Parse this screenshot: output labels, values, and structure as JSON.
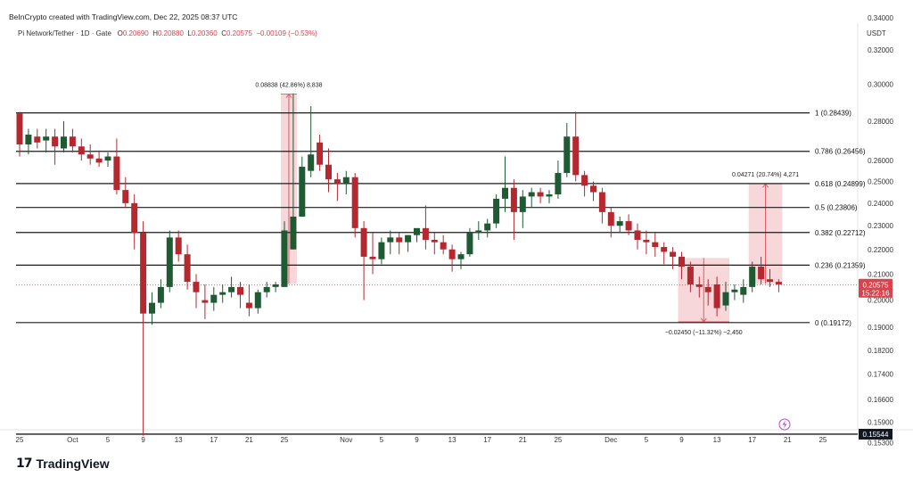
{
  "header": {
    "attribution": "BeInCrypto created with TradingView.com, Dec 22, 2025 08:37 UTC"
  },
  "ohlc": {
    "symbol": "Pi Network/Tether · 1D · Gate",
    "o_label": "O",
    "o": "0.20690",
    "h_label": "H",
    "h": "0.20880",
    "l_label": "L",
    "l": "0.20360",
    "c_label": "C",
    "c": "0.20575",
    "change": "−0.00109 (−0.53%)"
  },
  "currency": "USDT",
  "brand": {
    "name": "TradingView",
    "mark": "17"
  },
  "colors": {
    "up": "#1e5b33",
    "down": "#b52830",
    "wick": "#5a5a5a",
    "fib_line": "#1b1b1b",
    "measure_fill": "#f4c9cc",
    "measure_line": "#e05a64",
    "price_badge": "#d9434d",
    "low_badge": "#131722",
    "icon": "#b04ac7"
  },
  "chart_data": {
    "type": "candlestick",
    "title": "Pi Network/Tether · 1D · Gate",
    "ylim": [
      0.15,
      0.358
    ],
    "scale": "log",
    "y_ticks": [
      "0.34000",
      "0.32000",
      "0.30000",
      "0.28000",
      "0.26000",
      "0.25000",
      "0.24000",
      "0.23000",
      "0.22000",
      "0.21000",
      "0.20000",
      "0.19000",
      "0.18200",
      "0.17400",
      "0.16600",
      "0.15900",
      "0.15300"
    ],
    "x_ticks": [
      {
        "label": "25",
        "bar": 0
      },
      {
        "label": "Oct",
        "bar": 6
      },
      {
        "label": "5",
        "bar": 10
      },
      {
        "label": "9",
        "bar": 14
      },
      {
        "label": "13",
        "bar": 18
      },
      {
        "label": "17",
        "bar": 22
      },
      {
        "label": "21",
        "bar": 26
      },
      {
        "label": "25",
        "bar": 30
      },
      {
        "label": "Nov",
        "bar": 37
      },
      {
        "label": "5",
        "bar": 41
      },
      {
        "label": "9",
        "bar": 45
      },
      {
        "label": "13",
        "bar": 49
      },
      {
        "label": "17",
        "bar": 53
      },
      {
        "label": "21",
        "bar": 57
      },
      {
        "label": "25",
        "bar": 61
      },
      {
        "label": "Dec",
        "bar": 67
      },
      {
        "label": "5",
        "bar": 71
      },
      {
        "label": "9",
        "bar": 75
      },
      {
        "label": "13",
        "bar": 79
      },
      {
        "label": "17",
        "bar": 83
      },
      {
        "label": "21",
        "bar": 87
      },
      {
        "label": "25",
        "bar": 91
      }
    ],
    "candles": [
      [
        0.284,
        0.285,
        0.262,
        0.268
      ],
      [
        0.268,
        0.276,
        0.263,
        0.273
      ],
      [
        0.272,
        0.276,
        0.266,
        0.269
      ],
      [
        0.27,
        0.276,
        0.264,
        0.272
      ],
      [
        0.272,
        0.276,
        0.258,
        0.267
      ],
      [
        0.266,
        0.28,
        0.264,
        0.272
      ],
      [
        0.272,
        0.276,
        0.264,
        0.267
      ],
      [
        0.267,
        0.271,
        0.26,
        0.263
      ],
      [
        0.263,
        0.268,
        0.258,
        0.261
      ],
      [
        0.261,
        0.265,
        0.257,
        0.259
      ],
      [
        0.26,
        0.264,
        0.257,
        0.262
      ],
      [
        0.262,
        0.271,
        0.244,
        0.246
      ],
      [
        0.246,
        0.252,
        0.238,
        0.24
      ],
      [
        0.24,
        0.244,
        0.22,
        0.227
      ],
      [
        0.227,
        0.232,
        0.155,
        0.195
      ],
      [
        0.195,
        0.203,
        0.191,
        0.199
      ],
      [
        0.199,
        0.208,
        0.197,
        0.205
      ],
      [
        0.205,
        0.228,
        0.203,
        0.225
      ],
      [
        0.225,
        0.228,
        0.215,
        0.218
      ],
      [
        0.218,
        0.222,
        0.204,
        0.207
      ],
      [
        0.207,
        0.21,
        0.197,
        0.203
      ],
      [
        0.2,
        0.206,
        0.193,
        0.199
      ],
      [
        0.199,
        0.205,
        0.196,
        0.202
      ],
      [
        0.202,
        0.206,
        0.199,
        0.203
      ],
      [
        0.203,
        0.209,
        0.201,
        0.205
      ],
      [
        0.205,
        0.207,
        0.197,
        0.202
      ],
      [
        0.199,
        0.206,
        0.194,
        0.197
      ],
      [
        0.197,
        0.204,
        0.195,
        0.203
      ],
      [
        0.203,
        0.207,
        0.201,
        0.205
      ],
      [
        0.205,
        0.207,
        0.203,
        0.206
      ],
      [
        0.205,
        0.232,
        0.205,
        0.228
      ],
      [
        0.22,
        0.295,
        0.22,
        0.234
      ],
      [
        0.234,
        0.262,
        0.234,
        0.257
      ],
      [
        0.255,
        0.288,
        0.252,
        0.263
      ],
      [
        0.269,
        0.273,
        0.255,
        0.258
      ],
      [
        0.258,
        0.266,
        0.245,
        0.251
      ],
      [
        0.251,
        0.254,
        0.241,
        0.249
      ],
      [
        0.249,
        0.255,
        0.244,
        0.252
      ],
      [
        0.252,
        0.254,
        0.225,
        0.229
      ],
      [
        0.229,
        0.232,
        0.2,
        0.217
      ],
      [
        0.217,
        0.227,
        0.21,
        0.216
      ],
      [
        0.216,
        0.225,
        0.214,
        0.223
      ],
      [
        0.223,
        0.228,
        0.218,
        0.225
      ],
      [
        0.225,
        0.227,
        0.218,
        0.223
      ],
      [
        0.223,
        0.226,
        0.219,
        0.226
      ],
      [
        0.226,
        0.228,
        0.223,
        0.229
      ],
      [
        0.229,
        0.239,
        0.22,
        0.224
      ],
      [
        0.224,
        0.227,
        0.218,
        0.223
      ],
      [
        0.223,
        0.226,
        0.218,
        0.22
      ],
      [
        0.22,
        0.222,
        0.211,
        0.216
      ],
      [
        0.216,
        0.219,
        0.212,
        0.218
      ],
      [
        0.218,
        0.229,
        0.217,
        0.227
      ],
      [
        0.227,
        0.232,
        0.224,
        0.228
      ],
      [
        0.228,
        0.233,
        0.225,
        0.231
      ],
      [
        0.231,
        0.244,
        0.229,
        0.242
      ],
      [
        0.242,
        0.262,
        0.236,
        0.247
      ],
      [
        0.247,
        0.251,
        0.224,
        0.236
      ],
      [
        0.236,
        0.246,
        0.229,
        0.243
      ],
      [
        0.243,
        0.247,
        0.238,
        0.245
      ],
      [
        0.245,
        0.247,
        0.24,
        0.243
      ],
      [
        0.243,
        0.246,
        0.24,
        0.244
      ],
      [
        0.244,
        0.26,
        0.242,
        0.254
      ],
      [
        0.254,
        0.279,
        0.252,
        0.272
      ],
      [
        0.272,
        0.285,
        0.25,
        0.253
      ],
      [
        0.253,
        0.255,
        0.243,
        0.248
      ],
      [
        0.248,
        0.25,
        0.241,
        0.245
      ],
      [
        0.245,
        0.247,
        0.231,
        0.236
      ],
      [
        0.236,
        0.238,
        0.225,
        0.23
      ],
      [
        0.23,
        0.234,
        0.227,
        0.232
      ],
      [
        0.232,
        0.235,
        0.226,
        0.228
      ],
      [
        0.228,
        0.231,
        0.22,
        0.224
      ],
      [
        0.224,
        0.228,
        0.218,
        0.223
      ],
      [
        0.223,
        0.227,
        0.217,
        0.221
      ],
      [
        0.221,
        0.223,
        0.214,
        0.219
      ],
      [
        0.219,
        0.221,
        0.212,
        0.217
      ],
      [
        0.217,
        0.219,
        0.208,
        0.213
      ],
      [
        0.213,
        0.215,
        0.203,
        0.206
      ],
      [
        0.206,
        0.209,
        0.201,
        0.205
      ],
      [
        0.205,
        0.208,
        0.198,
        0.203
      ],
      [
        0.206,
        0.209,
        0.194,
        0.197
      ],
      [
        0.198,
        0.207,
        0.196,
        0.203
      ],
      [
        0.203,
        0.206,
        0.2,
        0.204
      ],
      [
        0.202,
        0.208,
        0.199,
        0.205
      ],
      [
        0.205,
        0.215,
        0.203,
        0.213
      ],
      [
        0.213,
        0.217,
        0.206,
        0.208
      ],
      [
        0.208,
        0.212,
        0.205,
        0.207
      ],
      [
        0.207,
        0.208,
        0.203,
        0.206
      ]
    ],
    "fib_levels": [
      {
        "label": "1 (0.28439)",
        "value": 0.28439
      },
      {
        "label": "0.786 (0.26456)",
        "value": 0.26456
      },
      {
        "label": "0.618 (0.24899)",
        "value": 0.24899
      },
      {
        "label": "0.5 (0.23806)",
        "value": 0.23806
      },
      {
        "label": "0.382 (0.22712)",
        "value": 0.22712
      },
      {
        "label": "0.236 (0.21359)",
        "value": 0.21359
      },
      {
        "label": "0 (0.19172)",
        "value": 0.19172
      }
    ],
    "support_line": {
      "value": 0.15544,
      "label": "0.15544"
    },
    "current_price": {
      "value": 0.20575,
      "label": "0.20575",
      "countdown": "15:22:16"
    },
    "measures": [
      {
        "label": "0.08838 (42.86%) 8,838",
        "from_bar": 30,
        "to_bar": 31,
        "from": 0.2062,
        "to": 0.2946,
        "direction": "up"
      },
      {
        "label": "−0.02450 (−11.32%) −2,450",
        "from_bar": 75,
        "to_bar": 80,
        "from": 0.2165,
        "to": 0.192,
        "direction": "down"
      },
      {
        "label": "0.04271 (20.74%) 4,271",
        "from_bar": 83,
        "to_bar": 86,
        "from": 0.2062,
        "to": 0.2489,
        "direction": "up"
      }
    ]
  }
}
